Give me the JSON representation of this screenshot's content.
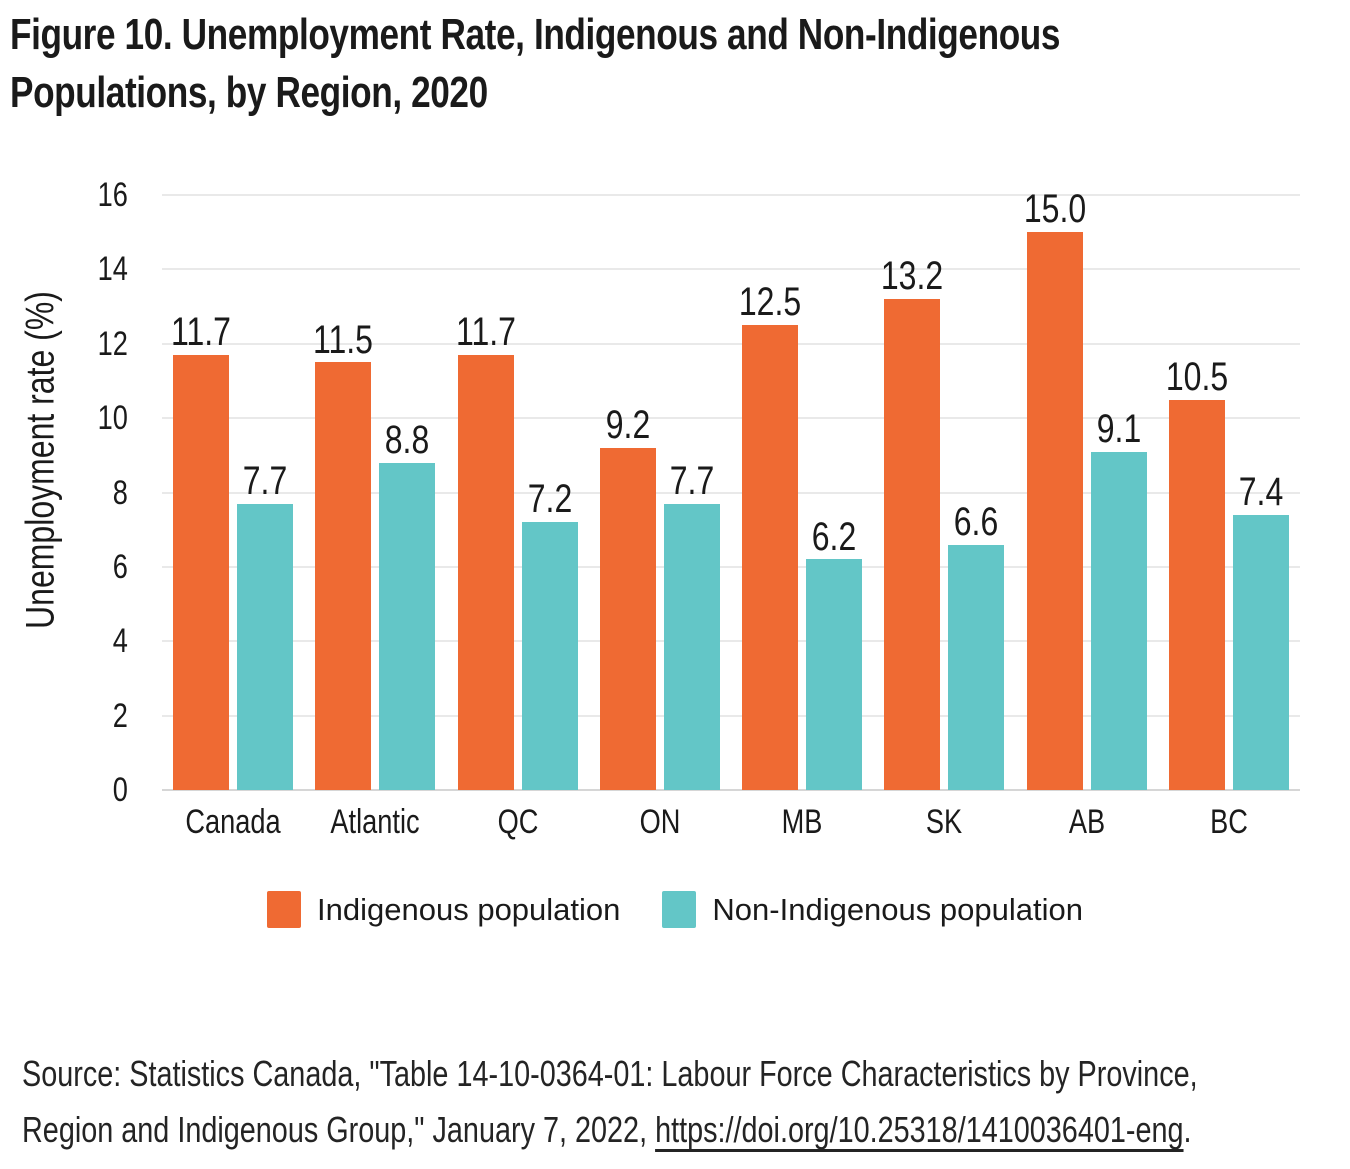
{
  "figure": {
    "title_line1": "Figure 10. Unemployment Rate, Indigenous and Non-Indigenous",
    "title_line2": "Populations, by Region, 2020"
  },
  "chart_data": {
    "type": "bar",
    "title": "Figure 10. Unemployment Rate, Indigenous and Non-Indigenous Populations, by Region, 2020",
    "categories": [
      "Canada",
      "Atlantic",
      "QC",
      "ON",
      "MB",
      "SK",
      "AB",
      "BC"
    ],
    "series": [
      {
        "name": "Indigenous population",
        "key": "indigenous",
        "color": "#EF6A33",
        "values": [
          11.7,
          11.5,
          11.7,
          9.2,
          12.5,
          13.2,
          15.0,
          10.5
        ]
      },
      {
        "name": "Non-Indigenous population",
        "key": "non-indigenous",
        "color": "#63C6C7",
        "values": [
          7.7,
          8.8,
          7.2,
          7.7,
          6.2,
          6.6,
          9.1,
          7.4
        ]
      }
    ],
    "ylabel": "Unemployment rate (%)",
    "ylim": [
      0,
      16
    ],
    "yticks": [
      0,
      2,
      4,
      6,
      8,
      10,
      12,
      14,
      16
    ],
    "grid": "horizontal",
    "legend_position": "bottom",
    "value_labels": true,
    "value_labels_decimals": 1
  },
  "source": {
    "line1": "Source: Statistics Canada, \"Table 14-10-0364-01: Labour Force Characteristics by Province,",
    "line2_prefix": "Region and Indigenous Group,\" January 7, 2022, ",
    "link_text": "https://doi.org/10.25318/1410036401-eng",
    "line2_suffix": "."
  },
  "colors": {
    "indigenous": "#EF6A33",
    "non_indigenous": "#63C6C7",
    "gridline": "#E9E9E9",
    "axis_line": "#D6D6D6",
    "text": "#1A1A1A"
  }
}
